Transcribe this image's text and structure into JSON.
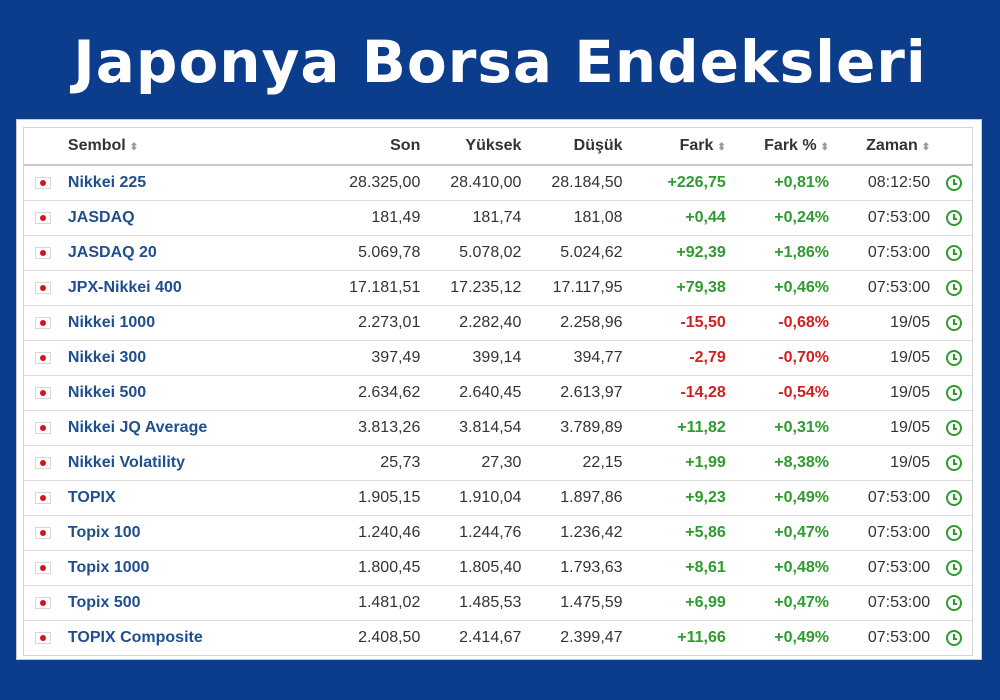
{
  "title": "Japonya Borsa Endeksleri",
  "table": {
    "headers": {
      "symbol": "Sembol",
      "last": "Son",
      "high": "Yüksek",
      "low": "Düşük",
      "change": "Fark",
      "change_pct": "Fark %",
      "time": "Zaman"
    },
    "sort_icon": "sort-arrows-icon",
    "flag_icon": "japan-flag-icon",
    "status_icon": "clock-icon",
    "colors": {
      "up": "#2e9b2e",
      "down": "#d11f1f",
      "link": "#1f4f8f",
      "background": "#0c3d8c"
    },
    "rows": [
      {
        "symbol": "Nikkei 225",
        "last": "28.325,00",
        "high": "28.410,00",
        "low": "28.184,50",
        "change": "+226,75",
        "change_pct": "+0,81%",
        "time": "08:12:50",
        "dir": "up"
      },
      {
        "symbol": "JASDAQ",
        "last": "181,49",
        "high": "181,74",
        "low": "181,08",
        "change": "+0,44",
        "change_pct": "+0,24%",
        "time": "07:53:00",
        "dir": "up"
      },
      {
        "symbol": "JASDAQ 20",
        "last": "5.069,78",
        "high": "5.078,02",
        "low": "5.024,62",
        "change": "+92,39",
        "change_pct": "+1,86%",
        "time": "07:53:00",
        "dir": "up"
      },
      {
        "symbol": "JPX-Nikkei 400",
        "last": "17.181,51",
        "high": "17.235,12",
        "low": "17.117,95",
        "change": "+79,38",
        "change_pct": "+0,46%",
        "time": "07:53:00",
        "dir": "up"
      },
      {
        "symbol": "Nikkei 1000",
        "last": "2.273,01",
        "high": "2.282,40",
        "low": "2.258,96",
        "change": "-15,50",
        "change_pct": "-0,68%",
        "time": "19/05",
        "dir": "down"
      },
      {
        "symbol": "Nikkei 300",
        "last": "397,49",
        "high": "399,14",
        "low": "394,77",
        "change": "-2,79",
        "change_pct": "-0,70%",
        "time": "19/05",
        "dir": "down"
      },
      {
        "symbol": "Nikkei 500",
        "last": "2.634,62",
        "high": "2.640,45",
        "low": "2.613,97",
        "change": "-14,28",
        "change_pct": "-0,54%",
        "time": "19/05",
        "dir": "down"
      },
      {
        "symbol": "Nikkei JQ Average",
        "last": "3.813,26",
        "high": "3.814,54",
        "low": "3.789,89",
        "change": "+11,82",
        "change_pct": "+0,31%",
        "time": "19/05",
        "dir": "up"
      },
      {
        "symbol": "Nikkei Volatility",
        "last": "25,73",
        "high": "27,30",
        "low": "22,15",
        "change": "+1,99",
        "change_pct": "+8,38%",
        "time": "19/05",
        "dir": "up"
      },
      {
        "symbol": "TOPIX",
        "last": "1.905,15",
        "high": "1.910,04",
        "low": "1.897,86",
        "change": "+9,23",
        "change_pct": "+0,49%",
        "time": "07:53:00",
        "dir": "up"
      },
      {
        "symbol": "Topix 100",
        "last": "1.240,46",
        "high": "1.244,76",
        "low": "1.236,42",
        "change": "+5,86",
        "change_pct": "+0,47%",
        "time": "07:53:00",
        "dir": "up"
      },
      {
        "symbol": "Topix 1000",
        "last": "1.800,45",
        "high": "1.805,40",
        "low": "1.793,63",
        "change": "+8,61",
        "change_pct": "+0,48%",
        "time": "07:53:00",
        "dir": "up"
      },
      {
        "symbol": "Topix 500",
        "last": "1.481,02",
        "high": "1.485,53",
        "low": "1.475,59",
        "change": "+6,99",
        "change_pct": "+0,47%",
        "time": "07:53:00",
        "dir": "up"
      },
      {
        "symbol": "TOPIX Composite",
        "last": "2.408,50",
        "high": "2.414,67",
        "low": "2.399,47",
        "change": "+11,66",
        "change_pct": "+0,49%",
        "time": "07:53:00",
        "dir": "up"
      }
    ]
  }
}
